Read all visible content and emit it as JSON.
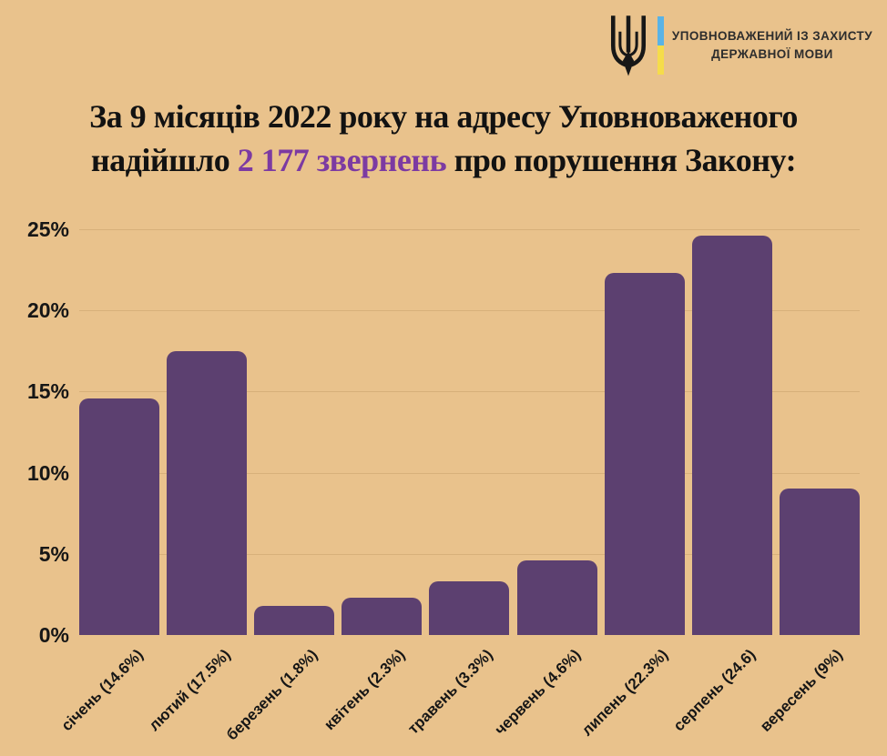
{
  "page": {
    "background": "#e9c28c"
  },
  "header": {
    "org_name_line1": "УПОВНОВАЖЕНИЙ ІЗ ЗАХИСТУ",
    "org_name_line2": "ДЕРЖАВНОЇ МОВИ",
    "trident_icon": "ukraine-trident",
    "flag_blue": "#5ab3e5",
    "flag_yellow": "#f5dc4a"
  },
  "title": {
    "line1": "За 9 місяців 2022 року на адресу Уповноваженого",
    "line2_prefix": "надійшло ",
    "line2_highlight": "2 177 звернень",
    "line2_suffix": " про порушення Закону:",
    "highlight_color": "#7c3aa2"
  },
  "chart_data": {
    "type": "bar",
    "categories": [
      "січень",
      "лютий",
      "березень",
      "квітень",
      "травень",
      "червень",
      "липень",
      "серпень",
      "вересень"
    ],
    "values": [
      14.6,
      17.5,
      1.8,
      2.3,
      3.3,
      4.6,
      22.3,
      24.6,
      9
    ],
    "x_tick_labels": [
      "січень (14.6%)",
      "лютий (17.5%)",
      "березень (1.8%)",
      "квітень (2.3%)",
      "травень (3.3%)",
      "червень (4.6%)",
      "липень (22.3%)",
      "серпень (24.6)",
      "вересень (9%)"
    ],
    "y_tick_labels": [
      "25%",
      "20%",
      "15%",
      "10%",
      "5%",
      "0%"
    ],
    "y_tick_values": [
      25,
      20,
      15,
      10,
      5,
      0
    ],
    "ylim": [
      0,
      25
    ],
    "grid": true,
    "legend": false,
    "bar_color": "#5c4070",
    "grid_color": "#d7b07a",
    "unit": "percent of 2 177 звернень"
  }
}
